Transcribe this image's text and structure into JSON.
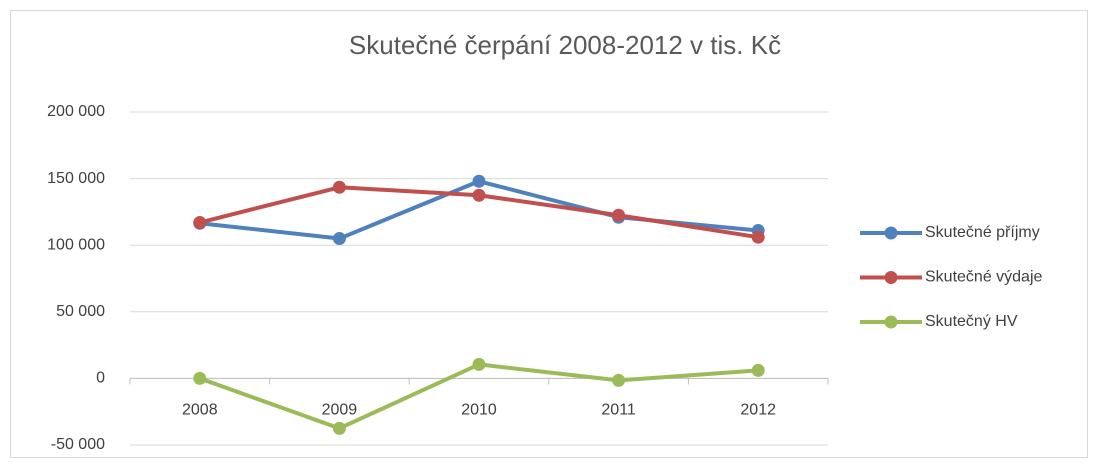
{
  "chart_data": {
    "type": "line",
    "title": "Skutečné čerpání  2008-2012 v tis.  Kč",
    "categories": [
      "2008",
      "2009",
      "2010",
      "2011",
      "2012"
    ],
    "series": [
      {
        "name": "Skutečné příjmy",
        "color": "#4f81bd",
        "values": [
          116500,
          105000,
          148000,
          121000,
          111000
        ]
      },
      {
        "name": "Skutečné výdaje",
        "color": "#c0504d",
        "values": [
          117000,
          143500,
          137500,
          122500,
          106000
        ]
      },
      {
        "name": "Skutečný HV",
        "color": "#9bbb59",
        "values": [
          0,
          -37500,
          10500,
          -1500,
          6000
        ]
      }
    ],
    "ylim": [
      -50000,
      200000
    ],
    "yticks": [
      {
        "value": -50000,
        "label": "-50 000"
      },
      0,
      {
        "value": 50000,
        "label": "50 000"
      },
      {
        "value": 100000,
        "label": "100 000"
      },
      {
        "value": 150000,
        "label": "150 000"
      },
      {
        "value": 200000,
        "label": "200 000"
      }
    ],
    "grid": true,
    "legend": "right"
  }
}
